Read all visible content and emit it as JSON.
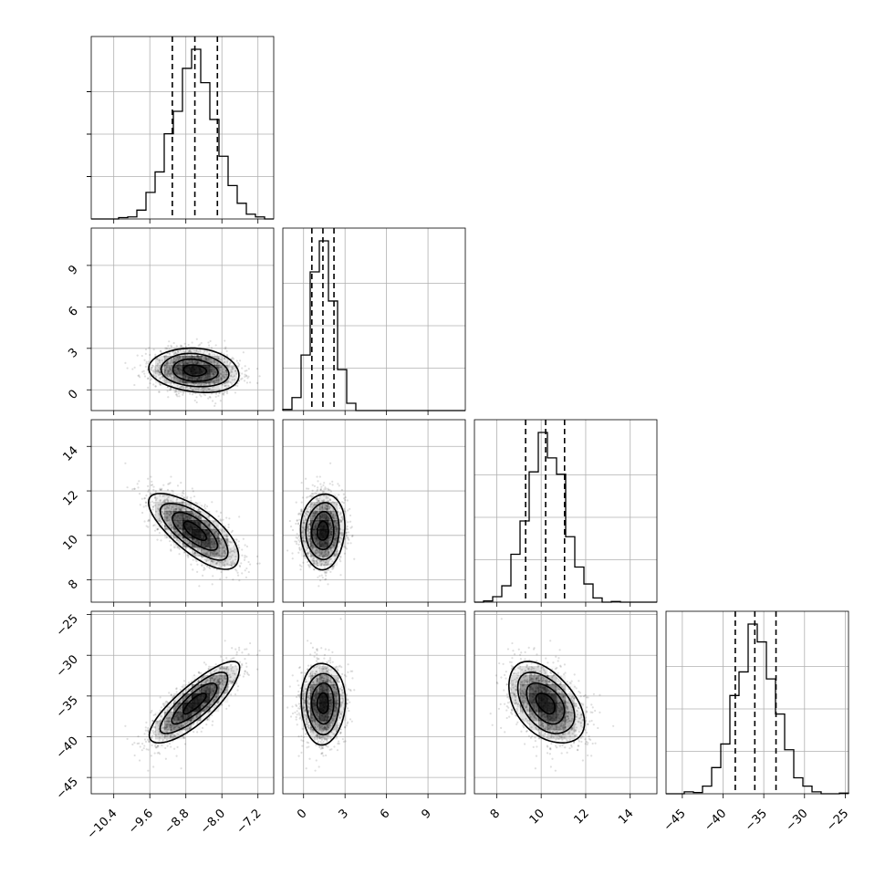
{
  "chart_data": {
    "type": "corner",
    "parameters": [
      {
        "range": [
          -10.9,
          -6.85
        ],
        "ticks": [
          -10.4,
          -9.6,
          -8.8,
          -8.0,
          -7.2
        ],
        "tick_labels": [
          "−10.4",
          "−9.6",
          "−8.8",
          "−8.0",
          "−7.2"
        ],
        "mean": -8.6,
        "sd": 0.5,
        "quantiles": [
          -9.1,
          -8.6,
          -8.1
        ]
      },
      {
        "range": [
          -1.5,
          11.7
        ],
        "ticks": [
          0,
          3,
          6,
          9
        ],
        "tick_labels": [
          "0",
          "3",
          "6",
          "9"
        ],
        "mean": 1.4,
        "sd": 0.8,
        "quantiles": [
          0.6,
          1.4,
          2.2
        ]
      },
      {
        "range": [
          7.0,
          15.2
        ],
        "ticks": [
          8,
          10,
          12,
          14
        ],
        "tick_labels": [
          "8",
          "10",
          "12",
          "14"
        ],
        "mean": 10.2,
        "sd": 0.85,
        "quantiles": [
          9.3,
          10.2,
          11.05
        ]
      },
      {
        "range": [
          -47.0,
          -24.6
        ],
        "ticks": [
          -45,
          -40,
          -35,
          -30,
          -25
        ],
        "tick_labels": [
          "−45",
          "−40",
          "−35",
          "−30",
          "−25"
        ],
        "mean": -35.9,
        "sd": 2.5,
        "quantiles": [
          -38.5,
          -36.1,
          -33.5
        ]
      }
    ],
    "correlations": [
      [
        1.0,
        -0.15,
        -0.72,
        0.82
      ],
      [
        -0.15,
        1.0,
        0.05,
        0.0
      ],
      [
        -0.72,
        0.05,
        1.0,
        -0.45
      ],
      [
        0.82,
        0.0,
        -0.45,
        1.0
      ]
    ],
    "hist_bins": 20,
    "contour_levels_sigma": [
      0.5,
      1.0,
      1.5,
      2.0
    ],
    "grid": true,
    "xlabel": "",
    "ylabel": "",
    "title": ""
  }
}
